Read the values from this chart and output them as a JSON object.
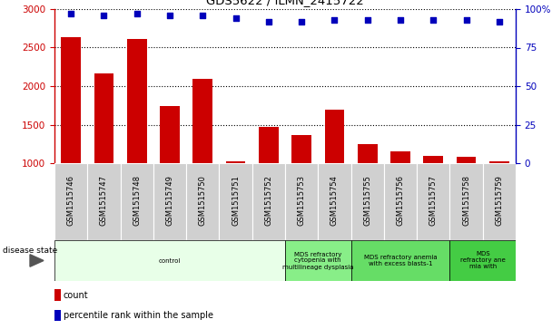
{
  "title": "GDS5622 / ILMN_2415722",
  "samples": [
    "GSM1515746",
    "GSM1515747",
    "GSM1515748",
    "GSM1515749",
    "GSM1515750",
    "GSM1515751",
    "GSM1515752",
    "GSM1515753",
    "GSM1515754",
    "GSM1515755",
    "GSM1515756",
    "GSM1515757",
    "GSM1515758",
    "GSM1515759"
  ],
  "counts": [
    2630,
    2160,
    2610,
    1740,
    2090,
    1020,
    1470,
    1360,
    1700,
    1250,
    1150,
    1090,
    1080,
    1020
  ],
  "percentile_ranks": [
    97,
    96,
    97,
    96,
    96,
    94,
    92,
    92,
    93,
    93,
    93,
    93,
    93,
    92
  ],
  "ylim_left": [
    1000,
    3000
  ],
  "ylim_right": [
    0,
    100
  ],
  "yticks_left": [
    1000,
    1500,
    2000,
    2500,
    3000
  ],
  "yticks_right": [
    0,
    25,
    50,
    75,
    100
  ],
  "bar_color": "#cc0000",
  "scatter_color": "#0000bb",
  "grid_color": "#000000",
  "label_bg_color": "#d0d0d0",
  "disease_groups": [
    {
      "label": "control",
      "start": 0,
      "end": 7,
      "color": "#e8ffe8"
    },
    {
      "label": "MDS refractory\ncytopenia with\nmultilineage dysplasia",
      "start": 7,
      "end": 9,
      "color": "#88ee88"
    },
    {
      "label": "MDS refractory anemia\nwith excess blasts-1",
      "start": 9,
      "end": 12,
      "color": "#66dd66"
    },
    {
      "label": "MDS\nrefractory ane\nmia with",
      "start": 12,
      "end": 14,
      "color": "#44cc44"
    }
  ],
  "disease_state_label": "disease state",
  "legend_count_label": "count",
  "legend_pct_label": "percentile rank within the sample",
  "bar_width": 0.6
}
